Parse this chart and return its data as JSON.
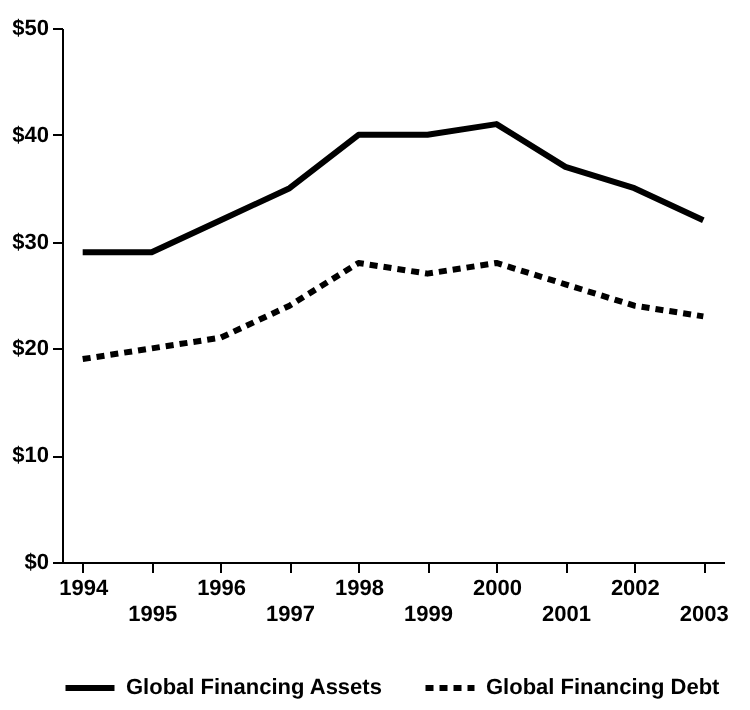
{
  "chart_data": {
    "type": "line",
    "categories": [
      "1994",
      "1995",
      "1996",
      "1997",
      "1998",
      "1999",
      "2000",
      "2001",
      "2002",
      "2003"
    ],
    "series": [
      {
        "name": "Global Financing Assets",
        "color": "#000000",
        "line_style": "solid",
        "values": [
          29,
          29,
          32,
          35,
          40,
          40,
          41,
          37,
          35,
          32
        ]
      },
      {
        "name": "Global Financing Debt",
        "color": "#000000",
        "line_style": "dashed",
        "values": [
          19,
          20,
          21,
          24,
          28,
          27,
          28,
          26,
          24,
          23
        ]
      }
    ],
    "ylim": [
      0,
      50
    ],
    "yticks": [
      {
        "value": 0,
        "label": "$0"
      },
      {
        "value": 10,
        "label": "$10"
      },
      {
        "value": 20,
        "label": "$20"
      },
      {
        "value": 30,
        "label": "$30"
      },
      {
        "value": 40,
        "label": "$40"
      },
      {
        "value": 50,
        "label": "$50"
      }
    ],
    "grid": false,
    "legend": "bottom",
    "marker": "none"
  }
}
